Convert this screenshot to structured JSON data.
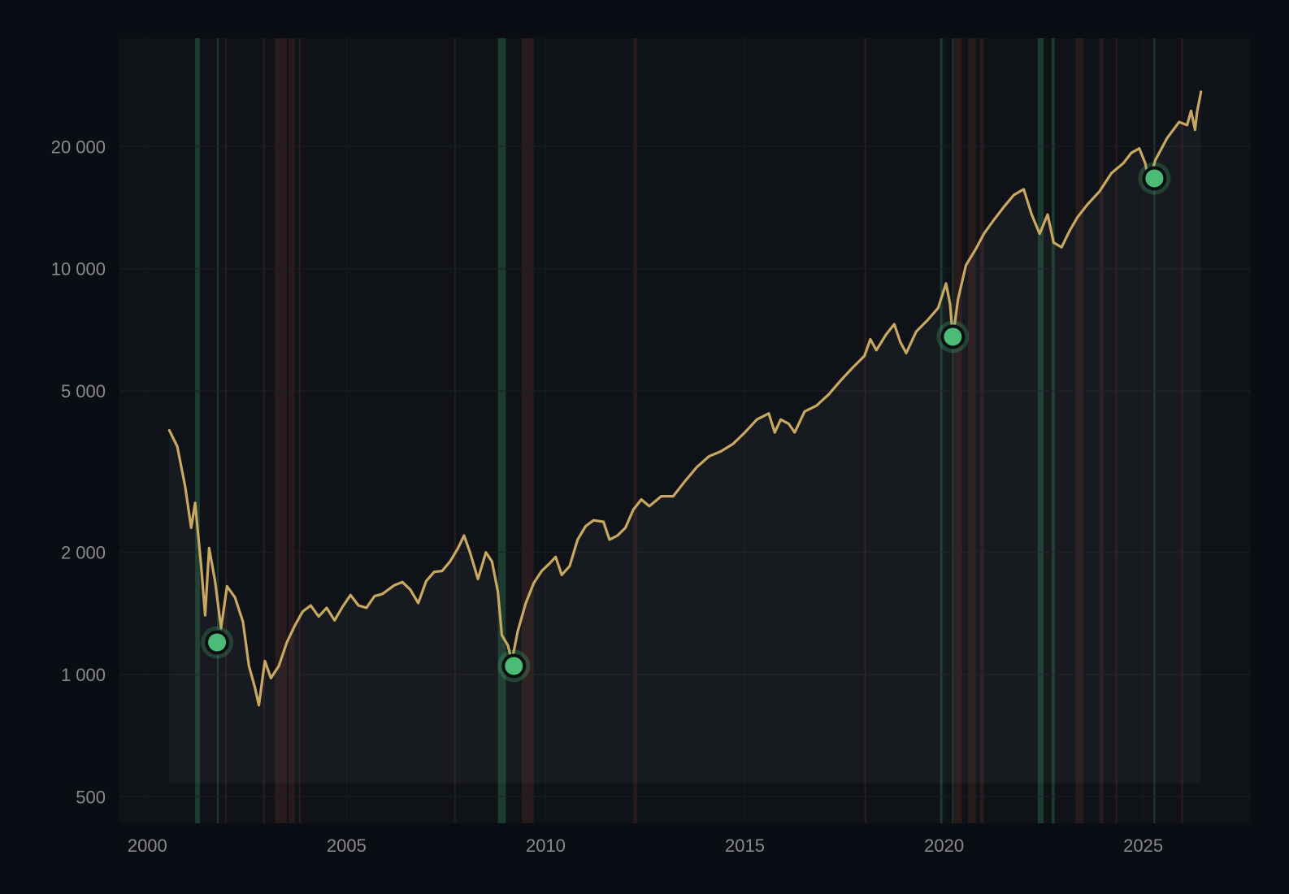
{
  "chart_data": {
    "type": "line",
    "title": "",
    "xlabel": "",
    "ylabel": "",
    "yscale": "log",
    "xlim": [
      1999.3,
      2027.7
    ],
    "ylim": [
      430,
      37000
    ],
    "grid": true,
    "legend": "none",
    "x_ticks": [
      {
        "value": 2000,
        "label": "2000"
      },
      {
        "value": 2005,
        "label": "2005"
      },
      {
        "value": 2010,
        "label": "2010"
      },
      {
        "value": 2015,
        "label": "2015"
      },
      {
        "value": 2020,
        "label": "2020"
      },
      {
        "value": 2025,
        "label": "2025"
      }
    ],
    "y_ticks": [
      {
        "value": 500,
        "label": "500"
      },
      {
        "value": 1000,
        "label": "1 000"
      },
      {
        "value": 2000,
        "label": "2 000"
      },
      {
        "value": 5000,
        "label": "5 000"
      },
      {
        "value": 10000,
        "label": "10 000"
      },
      {
        "value": 20000,
        "label": "20 000"
      }
    ],
    "series": [
      {
        "color": "#c9a862",
        "points": [
          [
            2000.55,
            4000
          ],
          [
            2000.75,
            3650
          ],
          [
            2000.95,
            2900
          ],
          [
            2001.1,
            2300
          ],
          [
            2001.2,
            2650
          ],
          [
            2001.35,
            1850
          ],
          [
            2001.45,
            1400
          ],
          [
            2001.55,
            2050
          ],
          [
            2001.7,
            1700
          ],
          [
            2001.85,
            1300
          ],
          [
            2002.0,
            1650
          ],
          [
            2002.2,
            1550
          ],
          [
            2002.4,
            1350
          ],
          [
            2002.55,
            1050
          ],
          [
            2002.7,
            930
          ],
          [
            2002.8,
            840
          ],
          [
            2002.95,
            1080
          ],
          [
            2003.1,
            980
          ],
          [
            2003.3,
            1050
          ],
          [
            2003.5,
            1200
          ],
          [
            2003.7,
            1320
          ],
          [
            2003.9,
            1430
          ],
          [
            2004.1,
            1480
          ],
          [
            2004.3,
            1390
          ],
          [
            2004.5,
            1460
          ],
          [
            2004.7,
            1360
          ],
          [
            2004.9,
            1470
          ],
          [
            2005.1,
            1570
          ],
          [
            2005.3,
            1480
          ],
          [
            2005.5,
            1460
          ],
          [
            2005.7,
            1560
          ],
          [
            2005.9,
            1580
          ],
          [
            2006.2,
            1660
          ],
          [
            2006.4,
            1690
          ],
          [
            2006.6,
            1620
          ],
          [
            2006.8,
            1500
          ],
          [
            2007.0,
            1700
          ],
          [
            2007.2,
            1790
          ],
          [
            2007.4,
            1800
          ],
          [
            2007.6,
            1900
          ],
          [
            2007.8,
            2050
          ],
          [
            2007.95,
            2200
          ],
          [
            2008.1,
            2000
          ],
          [
            2008.3,
            1720
          ],
          [
            2008.5,
            2000
          ],
          [
            2008.65,
            1900
          ],
          [
            2008.8,
            1600
          ],
          [
            2008.9,
            1250
          ],
          [
            2009.05,
            1180
          ],
          [
            2009.15,
            1080
          ],
          [
            2009.3,
            1280
          ],
          [
            2009.5,
            1500
          ],
          [
            2009.7,
            1680
          ],
          [
            2009.9,
            1800
          ],
          [
            2010.1,
            1880
          ],
          [
            2010.25,
            1950
          ],
          [
            2010.4,
            1760
          ],
          [
            2010.6,
            1850
          ],
          [
            2010.8,
            2150
          ],
          [
            2011.0,
            2320
          ],
          [
            2011.2,
            2400
          ],
          [
            2011.45,
            2380
          ],
          [
            2011.6,
            2150
          ],
          [
            2011.8,
            2200
          ],
          [
            2012.0,
            2300
          ],
          [
            2012.2,
            2550
          ],
          [
            2012.4,
            2700
          ],
          [
            2012.6,
            2600
          ],
          [
            2012.9,
            2750
          ],
          [
            2013.2,
            2750
          ],
          [
            2013.5,
            3000
          ],
          [
            2013.8,
            3250
          ],
          [
            2014.1,
            3450
          ],
          [
            2014.4,
            3550
          ],
          [
            2014.7,
            3700
          ],
          [
            2015.0,
            3950
          ],
          [
            2015.3,
            4250
          ],
          [
            2015.6,
            4400
          ],
          [
            2015.75,
            3950
          ],
          [
            2015.9,
            4250
          ],
          [
            2016.1,
            4150
          ],
          [
            2016.25,
            3950
          ],
          [
            2016.5,
            4450
          ],
          [
            2016.8,
            4600
          ],
          [
            2017.1,
            4900
          ],
          [
            2017.4,
            5300
          ],
          [
            2017.7,
            5700
          ],
          [
            2018.0,
            6100
          ],
          [
            2018.15,
            6700
          ],
          [
            2018.3,
            6300
          ],
          [
            2018.55,
            6900
          ],
          [
            2018.75,
            7300
          ],
          [
            2018.9,
            6600
          ],
          [
            2019.05,
            6200
          ],
          [
            2019.3,
            7000
          ],
          [
            2019.6,
            7500
          ],
          [
            2019.85,
            8000
          ],
          [
            2020.05,
            9200
          ],
          [
            2020.15,
            8200
          ],
          [
            2020.22,
            6750
          ],
          [
            2020.35,
            8400
          ],
          [
            2020.55,
            10200
          ],
          [
            2020.8,
            11200
          ],
          [
            2021.0,
            12200
          ],
          [
            2021.25,
            13200
          ],
          [
            2021.5,
            14200
          ],
          [
            2021.75,
            15200
          ],
          [
            2022.0,
            15700
          ],
          [
            2022.2,
            13600
          ],
          [
            2022.4,
            12200
          ],
          [
            2022.6,
            13600
          ],
          [
            2022.75,
            11600
          ],
          [
            2022.95,
            11300
          ],
          [
            2023.15,
            12400
          ],
          [
            2023.35,
            13400
          ],
          [
            2023.6,
            14400
          ],
          [
            2023.9,
            15500
          ],
          [
            2024.2,
            17200
          ],
          [
            2024.5,
            18200
          ],
          [
            2024.7,
            19300
          ],
          [
            2024.9,
            19800
          ],
          [
            2025.05,
            18200
          ],
          [
            2025.15,
            16300
          ],
          [
            2025.3,
            18500
          ],
          [
            2025.6,
            21000
          ],
          [
            2025.9,
            23000
          ],
          [
            2026.1,
            22600
          ],
          [
            2026.2,
            24500
          ],
          [
            2026.3,
            22000
          ],
          [
            2026.35,
            24300
          ],
          [
            2026.45,
            27300
          ]
        ]
      }
    ],
    "markers": [
      {
        "x": 2001.75,
        "y": 1200
      },
      {
        "x": 2009.2,
        "y": 1050
      },
      {
        "x": 2020.22,
        "y": 6800
      },
      {
        "x": 2025.28,
        "y": 16700
      }
    ],
    "regions": {
      "green": [
        [
          2001.2,
          2001.32
        ],
        [
          2001.75,
          2001.79
        ],
        [
          2008.8,
          2009.0
        ],
        [
          2019.9,
          2019.96
        ],
        [
          2020.2,
          2020.24
        ],
        [
          2022.35,
          2022.5
        ],
        [
          2022.7,
          2022.78
        ],
        [
          2025.26,
          2025.3
        ]
      ],
      "red": [
        [
          2001.95,
          2002.0
        ],
        [
          2002.9,
          2002.95
        ],
        [
          2003.2,
          2003.5
        ],
        [
          2003.55,
          2003.7
        ],
        [
          2003.8,
          2003.85
        ],
        [
          2007.7,
          2007.75
        ],
        [
          2009.4,
          2009.7
        ],
        [
          2012.2,
          2012.3
        ],
        [
          2018.0,
          2018.05
        ],
        [
          2020.25,
          2020.45
        ],
        [
          2020.6,
          2020.8
        ],
        [
          2020.9,
          2021.0
        ],
        [
          2023.3,
          2023.5
        ],
        [
          2023.9,
          2024.0
        ],
        [
          2024.3,
          2024.35
        ],
        [
          2025.95,
          2026.0
        ]
      ]
    },
    "colors": {
      "background": "#0a0d14",
      "plot_background": "#0f1216",
      "line": "#c9a862",
      "marker": "#4cbb78",
      "region_green": "#1f4a35",
      "region_red": "#3a2022",
      "tick_label": "#8a8a86"
    }
  }
}
